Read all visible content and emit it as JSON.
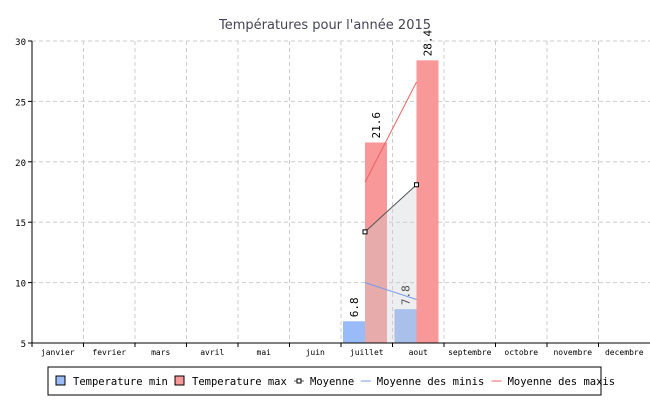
{
  "chart_data": {
    "type": "bar",
    "title": "Températures pour l'année 2015",
    "categories": [
      "janvier",
      "fevrier",
      "mars",
      "avril",
      "mai",
      "juin",
      "juillet",
      "aout",
      "septembre",
      "octobre",
      "novembre",
      "decembre"
    ],
    "ylim": [
      5,
      30
    ],
    "yticks": [
      5,
      10,
      15,
      20,
      25,
      30
    ],
    "grid": true,
    "legend_placement": "bottom",
    "series": [
      {
        "name": "Temperature min",
        "type": "bar",
        "color": "#99bbf7",
        "values": [
          null,
          null,
          null,
          null,
          null,
          null,
          6.8,
          7.8,
          null,
          null,
          null,
          null
        ],
        "labels": [
          "",
          "",
          "",
          "",
          "",
          "",
          "6.8",
          "7.8",
          "",
          "",
          "",
          ""
        ]
      },
      {
        "name": "Temperature max",
        "type": "bar",
        "color": "#f89898",
        "values": [
          null,
          null,
          null,
          null,
          null,
          null,
          21.6,
          28.4,
          null,
          null,
          null,
          null
        ],
        "labels": [
          "",
          "",
          "",
          "",
          "",
          "",
          "21.6",
          "28.4",
          "",
          "",
          "",
          ""
        ]
      },
      {
        "name": "Moyenne",
        "type": "line",
        "color": "#555555",
        "values": [
          null,
          null,
          null,
          null,
          null,
          null,
          14.2,
          18.1,
          null,
          null,
          null,
          null
        ]
      },
      {
        "name": "Moyenne des minis",
        "type": "line",
        "color": "#7799ee",
        "values": [
          null,
          null,
          null,
          null,
          null,
          null,
          10.0,
          8.6,
          null,
          null,
          null,
          null
        ]
      },
      {
        "name": "Moyenne des maxis",
        "type": "line",
        "color": "#f06060",
        "values": [
          null,
          null,
          null,
          null,
          null,
          null,
          18.3,
          26.6,
          null,
          null,
          null,
          null
        ]
      }
    ]
  }
}
